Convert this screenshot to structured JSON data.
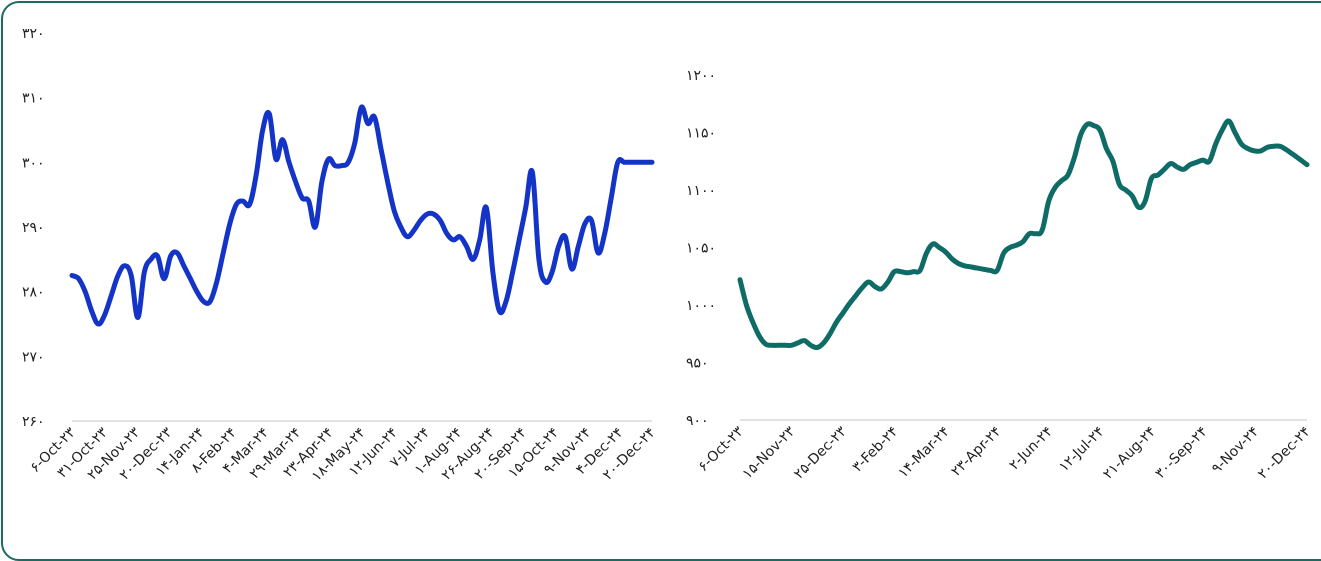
{
  "chart_data": [
    {
      "type": "line",
      "color": "#1434c8",
      "ylim": [
        260,
        320
      ],
      "yticks": [
        "۲۶۰",
        "۲۷۰",
        "۲۸۰",
        "۲۹۰",
        "۳۰۰",
        "۳۱۰",
        "۳۲۰"
      ],
      "ytick_values": [
        260,
        270,
        280,
        290,
        300,
        310,
        320
      ],
      "xticks": [
        "۶-Oct-۲۳",
        "۳۱-Oct-۲۳",
        "۲۵-Nov-۲۳",
        "۲۰-Dec-۲۳",
        "۱۴-Jan-۲۴",
        "۸-Feb-۲۴",
        "۴-Mar-۲۴",
        "۲۹-Mar-۲۴",
        "۲۳-Apr-۲۴",
        "۱۸-May-۲۴",
        "۱۲-Jun-۲۴",
        "۷-Jul-۲۴",
        "۱-Aug-۲۴",
        "۲۶-Aug-۲۴",
        "۲۰-Sep-۲۴",
        "۱۵-Oct-۲۴",
        "۹-Nov-۲۴",
        "۴-Dec-۲۴",
        "۲۰-Dec-۲۴"
      ],
      "series": [
        {
          "x": [
            "2023-10-06",
            "2023-10-11",
            "2023-10-16",
            "2023-10-21",
            "2023-10-26",
            "2023-10-31",
            "2023-11-05",
            "2023-11-10",
            "2023-11-15",
            "2023-11-20",
            "2023-11-25",
            "2023-11-30",
            "2023-12-05",
            "2023-12-10",
            "2023-12-15",
            "2023-12-20",
            "2023-12-25",
            "2023-12-30",
            "2024-01-04",
            "2024-01-09",
            "2024-01-14",
            "2024-01-19",
            "2024-01-24",
            "2024-01-29",
            "2024-02-03",
            "2024-02-08",
            "2024-02-13",
            "2024-02-18",
            "2024-02-23",
            "2024-02-28",
            "2024-03-04",
            "2024-03-09",
            "2024-03-14",
            "2024-03-19",
            "2024-03-24",
            "2024-03-29",
            "2024-04-03",
            "2024-04-08",
            "2024-04-13",
            "2024-04-18",
            "2024-04-23",
            "2024-04-28",
            "2024-05-03",
            "2024-05-08",
            "2024-05-13",
            "2024-05-18",
            "2024-05-23",
            "2024-05-28",
            "2024-06-02",
            "2024-06-07",
            "2024-06-12",
            "2024-06-17",
            "2024-06-22",
            "2024-06-27",
            "2024-07-02",
            "2024-07-07",
            "2024-07-12",
            "2024-07-17",
            "2024-07-22",
            "2024-07-27",
            "2024-08-01",
            "2024-08-06",
            "2024-08-11",
            "2024-08-16",
            "2024-08-21",
            "2024-08-26",
            "2024-08-31",
            "2024-09-05",
            "2024-09-10",
            "2024-09-15",
            "2024-09-20",
            "2024-09-25",
            "2024-09-30",
            "2024-10-05",
            "2024-10-10",
            "2024-10-15",
            "2024-10-20",
            "2024-10-25",
            "2024-10-30",
            "2024-11-04",
            "2024-11-09",
            "2024-11-14",
            "2024-11-19",
            "2024-11-24",
            "2024-11-29",
            "2024-12-04",
            "2024-12-09",
            "2024-12-14",
            "2024-12-20"
          ],
          "y": [
            282.5,
            282.0,
            280.0,
            277.0,
            275.0,
            276.5,
            279.5,
            282.5,
            284.0,
            282.5,
            276.0,
            283.0,
            285.0,
            285.5,
            282.0,
            285.5,
            286.0,
            284.0,
            282.0,
            280.0,
            278.5,
            278.5,
            281.5,
            286.0,
            290.5,
            293.5,
            294.0,
            293.5,
            298.0,
            305.0,
            307.5,
            300.5,
            303.5,
            300.0,
            297.0,
            294.5,
            294.0,
            290.0,
            297.0,
            300.5,
            299.5,
            299.5,
            300.0,
            303.0,
            308.5,
            306.0,
            307.0,
            302.0,
            297.0,
            292.5,
            290.0,
            288.5,
            289.5,
            291.0,
            292.0,
            292.0,
            291.0,
            289.0,
            288.0,
            288.5,
            287.0,
            285.0,
            288.0,
            293.0,
            283.0,
            277.0,
            278.5,
            283.0,
            288.0,
            293.0,
            298.5,
            285.0,
            281.5,
            283.0,
            287.0,
            288.5,
            283.5,
            287.0,
            290.5,
            291.0,
            286.0,
            289.0,
            294.5,
            300.0,
            300.0,
            300.0,
            300.0,
            300.0,
            300.0
          ]
        }
      ]
    },
    {
      "type": "line",
      "color": "#0f6b66",
      "ylim": [
        900,
        1200
      ],
      "yticks": [
        "۹۰۰",
        "۹۵۰",
        "۱۰۰۰",
        "۱۰۵۰",
        "۱۱۰۰",
        "۱۱۵۰",
        "۱۲۰۰"
      ],
      "ytick_values": [
        900,
        950,
        1000,
        1050,
        1100,
        1150,
        1200
      ],
      "xticks": [
        "۶-Oct-۲۳",
        "۱۵-Nov-۲۳",
        "۲۵-Dec-۲۳",
        "۳-Feb-۲۴",
        "۱۴-Mar-۲۴",
        "۲۳-Apr-۲۴",
        "۲-Jun-۲۴",
        "۱۲-Jul-۲۴",
        "۲۱-Aug-۲۴",
        "۳۰-Sep-۲۴",
        "۹-Nov-۲۴",
        "۲۰-Dec-۲۴"
      ],
      "series": [
        {
          "x": [
            "2023-10-06",
            "2023-10-11",
            "2023-10-16",
            "2023-10-21",
            "2023-10-26",
            "2023-10-31",
            "2023-11-05",
            "2023-11-10",
            "2023-11-15",
            "2023-11-20",
            "2023-11-25",
            "2023-11-30",
            "2023-12-05",
            "2023-12-10",
            "2023-12-15",
            "2023-12-20",
            "2023-12-25",
            "2023-12-30",
            "2024-01-04",
            "2024-01-09",
            "2024-01-14",
            "2024-01-19",
            "2024-01-24",
            "2024-01-29",
            "2024-02-03",
            "2024-02-08",
            "2024-02-13",
            "2024-02-18",
            "2024-02-23",
            "2024-02-28",
            "2024-03-04",
            "2024-03-09",
            "2024-03-14",
            "2024-03-19",
            "2024-03-24",
            "2024-03-29",
            "2024-04-03",
            "2024-04-08",
            "2024-04-13",
            "2024-04-18",
            "2024-04-23",
            "2024-04-28",
            "2024-05-03",
            "2024-05-08",
            "2024-05-13",
            "2024-05-18",
            "2024-05-23",
            "2024-05-28",
            "2024-06-02",
            "2024-06-07",
            "2024-06-12",
            "2024-06-17",
            "2024-06-22",
            "2024-06-27",
            "2024-07-02",
            "2024-07-07",
            "2024-07-12",
            "2024-07-17",
            "2024-07-22",
            "2024-07-27",
            "2024-08-01",
            "2024-08-06",
            "2024-08-11",
            "2024-08-16",
            "2024-08-21",
            "2024-08-26",
            "2024-08-31",
            "2024-09-05",
            "2024-09-10",
            "2024-09-15",
            "2024-09-20",
            "2024-09-25",
            "2024-09-30",
            "2024-10-05",
            "2024-10-10",
            "2024-10-15",
            "2024-10-20",
            "2024-10-25",
            "2024-10-30",
            "2024-11-04",
            "2024-11-09",
            "2024-11-14",
            "2024-11-19",
            "2024-11-24",
            "2024-11-29",
            "2024-12-04",
            "2024-12-09",
            "2024-12-14",
            "2024-12-20"
          ],
          "y": [
            1022,
            1000,
            985,
            973,
            966,
            965,
            965,
            965,
            965,
            967,
            969,
            965,
            963,
            967,
            975,
            985,
            993,
            1001,
            1008,
            1015,
            1020,
            1016,
            1014,
            1020,
            1029,
            1029,
            1028,
            1029,
            1030,
            1045,
            1053,
            1050,
            1046,
            1040,
            1036,
            1034,
            1033,
            1032,
            1031,
            1030,
            1030,
            1045,
            1050,
            1052,
            1055,
            1062,
            1062,
            1065,
            1090,
            1102,
            1108,
            1113,
            1128,
            1148,
            1157,
            1156,
            1152,
            1136,
            1125,
            1105,
            1100,
            1095,
            1085,
            1090,
            1110,
            1113,
            1118,
            1123,
            1120,
            1118,
            1122,
            1124,
            1126,
            1125,
            1140,
            1152,
            1160,
            1150,
            1140,
            1136,
            1134,
            1134,
            1137,
            1138,
            1138,
            1135,
            1131,
            1127,
            1122
          ]
        }
      ]
    }
  ]
}
